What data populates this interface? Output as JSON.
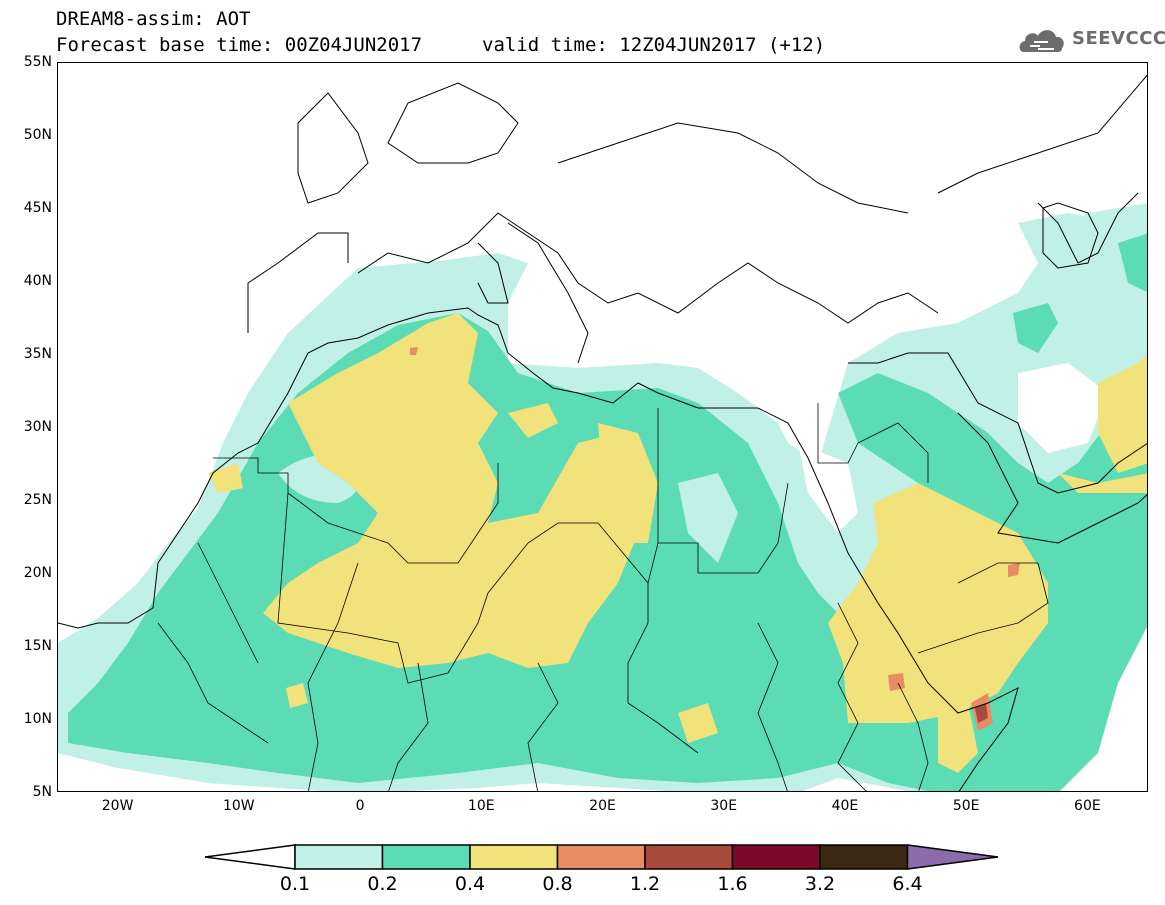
{
  "header": {
    "title_line1": "DREAM8-assim: AOT",
    "title_line2": "Forecast base time: 00Z04JUN2017",
    "valid_time": "valid time: 12Z04JUN2017 (+12)",
    "logo_text": "SEEVCCC"
  },
  "map": {
    "projection": "lat-lon",
    "lon_range": [
      -25,
      65
    ],
    "lat_range": [
      5,
      55
    ],
    "lat_ticks": [
      {
        "value": 55,
        "label": "55N"
      },
      {
        "value": 50,
        "label": "50N"
      },
      {
        "value": 45,
        "label": "45N"
      },
      {
        "value": 40,
        "label": "40N"
      },
      {
        "value": 35,
        "label": "35N"
      },
      {
        "value": 30,
        "label": "30N"
      },
      {
        "value": 25,
        "label": "25N"
      },
      {
        "value": 20,
        "label": "20N"
      },
      {
        "value": 15,
        "label": "15N"
      },
      {
        "value": 10,
        "label": "10N"
      },
      {
        "value": 5,
        "label": "5N"
      }
    ],
    "lon_ticks": [
      {
        "value": -20,
        "label": "20W"
      },
      {
        "value": -10,
        "label": "10W"
      },
      {
        "value": 0,
        "label": "0"
      },
      {
        "value": 10,
        "label": "10E"
      },
      {
        "value": 20,
        "label": "20E"
      },
      {
        "value": 30,
        "label": "30E"
      },
      {
        "value": 40,
        "label": "40E"
      },
      {
        "value": 50,
        "label": "50E"
      },
      {
        "value": 60,
        "label": "60E"
      }
    ]
  },
  "colorbar": {
    "levels": [
      "0.1",
      "0.2",
      "0.4",
      "0.8",
      "1.2",
      "1.6",
      "3.2",
      "6.4"
    ],
    "colors": [
      "#ffffff",
      "#c0f0e6",
      "#5cdcb4",
      "#f2e27c",
      "#e88c64",
      "#a84a3c",
      "#7a0a28",
      "#3a2814",
      "#8c6ca8"
    ]
  }
}
